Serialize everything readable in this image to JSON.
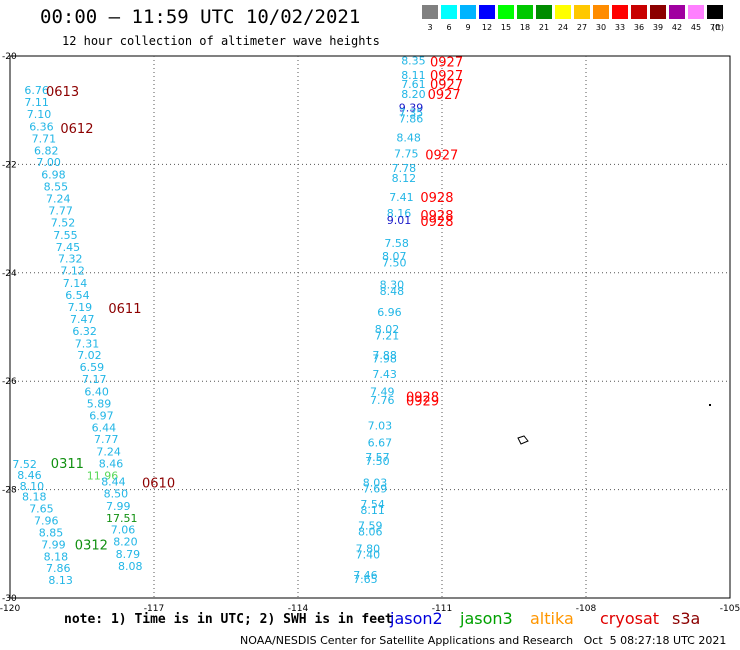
{
  "header": {
    "title": "00:00 – 11:59 UTC 10/02/2021",
    "subtitle": "12 hour collection of altimeter wave heights"
  },
  "color_scale": {
    "unit": "(ft)",
    "bins": [
      {
        "label": "3",
        "color": "#808080"
      },
      {
        "label": "6",
        "color": "#00ffff"
      },
      {
        "label": "9",
        "color": "#00b4ff"
      },
      {
        "label": "12",
        "color": "#0000ff"
      },
      {
        "label": "15",
        "color": "#00ff00"
      },
      {
        "label": "18",
        "color": "#00c800"
      },
      {
        "label": "21",
        "color": "#008c00"
      },
      {
        "label": "24",
        "color": "#ffff00"
      },
      {
        "label": "27",
        "color": "#ffc800"
      },
      {
        "label": "30",
        "color": "#ff8c00"
      },
      {
        "label": "33",
        "color": "#ff0000"
      },
      {
        "label": "36",
        "color": "#c80000"
      },
      {
        "label": "39",
        "color": "#8c0000"
      },
      {
        "label": "42",
        "color": "#a000a0"
      },
      {
        "label": "45",
        "color": "#ff80ff"
      },
      {
        "label": "70",
        "color": "#000000"
      }
    ]
  },
  "axes": {
    "lon_ticks": [
      -120,
      -117,
      -114,
      -111,
      -108,
      -105
    ],
    "lat_ticks": [
      -20,
      -22,
      -24,
      -26,
      -28,
      -30
    ],
    "lon_labels": [
      "-120",
      "-117",
      "-114",
      "-111",
      "-108",
      "-105"
    ],
    "lat_labels": [
      "-20",
      "-22",
      "-24",
      "-26",
      "-28",
      "-30"
    ]
  },
  "colors": {
    "cyan": "#22b6e6",
    "blue": "#1818c8",
    "green_light": "#58d858",
    "green": "#109010",
    "dark_red": "#8c0000",
    "red": "#ff0000"
  },
  "wave_heights": [
    {
      "v": "6.76",
      "lon": -119.7,
      "lat": -20.63,
      "c": "cyan"
    },
    {
      "v": "7.11",
      "lon": -119.7,
      "lat": -20.85,
      "c": "cyan"
    },
    {
      "v": "7.10",
      "lon": -119.65,
      "lat": -21.07,
      "c": "cyan"
    },
    {
      "v": "6.36",
      "lon": -119.6,
      "lat": -21.3,
      "c": "cyan"
    },
    {
      "v": "7.71",
      "lon": -119.55,
      "lat": -21.52,
      "c": "cyan"
    },
    {
      "v": "6.82",
      "lon": -119.5,
      "lat": -21.74,
      "c": "cyan"
    },
    {
      "v": "7.00",
      "lon": -119.45,
      "lat": -21.96,
      "c": "cyan"
    },
    {
      "v": "6.98",
      "lon": -119.35,
      "lat": -22.19,
      "c": "cyan"
    },
    {
      "v": "8.55",
      "lon": -119.3,
      "lat": -22.41,
      "c": "cyan"
    },
    {
      "v": "7.24",
      "lon": -119.25,
      "lat": -22.63,
      "c": "cyan"
    },
    {
      "v": "7.77",
      "lon": -119.2,
      "lat": -22.85,
      "c": "cyan"
    },
    {
      "v": "7.52",
      "lon": -119.15,
      "lat": -23.07,
      "c": "cyan"
    },
    {
      "v": "7.55",
      "lon": -119.1,
      "lat": -23.3,
      "c": "cyan"
    },
    {
      "v": "7.45",
      "lon": -119.05,
      "lat": -23.52,
      "c": "cyan"
    },
    {
      "v": "7.32",
      "lon": -119.0,
      "lat": -23.74,
      "c": "cyan"
    },
    {
      "v": "7.12",
      "lon": -118.95,
      "lat": -23.96,
      "c": "cyan"
    },
    {
      "v": "7.14",
      "lon": -118.9,
      "lat": -24.19,
      "c": "cyan"
    },
    {
      "v": "6.54",
      "lon": -118.85,
      "lat": -24.41,
      "c": "cyan"
    },
    {
      "v": "7.19",
      "lon": -118.8,
      "lat": -24.63,
      "c": "cyan"
    },
    {
      "v": "7.47",
      "lon": -118.75,
      "lat": -24.85,
      "c": "cyan"
    },
    {
      "v": "6.32",
      "lon": -118.7,
      "lat": -25.07,
      "c": "cyan"
    },
    {
      "v": "7.31",
      "lon": -118.65,
      "lat": -25.3,
      "c": "cyan"
    },
    {
      "v": "7.02",
      "lon": -118.6,
      "lat": -25.52,
      "c": "cyan"
    },
    {
      "v": "6.59",
      "lon": -118.55,
      "lat": -25.74,
      "c": "cyan"
    },
    {
      "v": "7.17",
      "lon": -118.5,
      "lat": -25.96,
      "c": "cyan"
    },
    {
      "v": "6.40",
      "lon": -118.45,
      "lat": -26.19,
      "c": "cyan"
    },
    {
      "v": "5.89",
      "lon": -118.4,
      "lat": -26.41,
      "c": "cyan"
    },
    {
      "v": "6.97",
      "lon": -118.35,
      "lat": -26.63,
      "c": "cyan"
    },
    {
      "v": "6.44",
      "lon": -118.3,
      "lat": -26.85,
      "c": "cyan"
    },
    {
      "v": "7.77",
      "lon": -118.25,
      "lat": -27.07,
      "c": "cyan"
    },
    {
      "v": "7.24",
      "lon": -118.2,
      "lat": -27.3,
      "c": "cyan"
    },
    {
      "v": "8.46",
      "lon": -118.15,
      "lat": -27.52,
      "c": "cyan"
    },
    {
      "v": "11.96",
      "lon": -118.4,
      "lat": -27.74,
      "c": "green_light"
    },
    {
      "v": "8.44",
      "lon": -118.1,
      "lat": -27.85,
      "c": "cyan"
    },
    {
      "v": "8.50",
      "lon": -118.05,
      "lat": -28.07,
      "c": "cyan"
    },
    {
      "v": "7.99",
      "lon": -118.0,
      "lat": -28.3,
      "c": "cyan"
    },
    {
      "v": "17.51",
      "lon": -118.0,
      "lat": -28.52,
      "c": "green"
    },
    {
      "v": "7.06",
      "lon": -117.9,
      "lat": -28.74,
      "c": "cyan"
    },
    {
      "v": "8.20",
      "lon": -117.85,
      "lat": -28.96,
      "c": "cyan"
    },
    {
      "v": "8.79",
      "lon": -117.8,
      "lat": -29.19,
      "c": "cyan"
    },
    {
      "v": "8.08",
      "lon": -117.75,
      "lat": -29.41,
      "c": "cyan"
    },
    {
      "v": "7.52",
      "lon": -119.95,
      "lat": -27.53,
      "c": "cyan"
    },
    {
      "v": "8.46",
      "lon": -119.85,
      "lat": -27.73,
      "c": "cyan"
    },
    {
      "v": "8.10",
      "lon": -119.8,
      "lat": -27.93,
      "c": "cyan"
    },
    {
      "v": "8.18",
      "lon": -119.75,
      "lat": -28.13,
      "c": "cyan"
    },
    {
      "v": "7.65",
      "lon": -119.6,
      "lat": -28.35,
      "c": "cyan"
    },
    {
      "v": "7.96",
      "lon": -119.5,
      "lat": -28.57,
      "c": "cyan"
    },
    {
      "v": "8.85",
      "lon": -119.4,
      "lat": -28.79,
      "c": "cyan"
    },
    {
      "v": "7.99",
      "lon": -119.35,
      "lat": -29.01,
      "c": "cyan"
    },
    {
      "v": "8.18",
      "lon": -119.3,
      "lat": -29.23,
      "c": "cyan"
    },
    {
      "v": "7.86",
      "lon": -119.25,
      "lat": -29.45,
      "c": "cyan"
    },
    {
      "v": "8.13",
      "lon": -119.2,
      "lat": -29.67,
      "c": "cyan"
    },
    {
      "v": "8.35",
      "lon": -111.85,
      "lat": -20.08,
      "c": "cyan"
    },
    {
      "v": "8.11",
      "lon": -111.85,
      "lat": -20.35,
      "c": "cyan"
    },
    {
      "v": "7.61",
      "lon": -111.85,
      "lat": -20.52,
      "c": "cyan"
    },
    {
      "v": "8.20",
      "lon": -111.85,
      "lat": -20.7,
      "c": "cyan"
    },
    {
      "v": "9.39",
      "lon": -111.9,
      "lat": -20.95,
      "c": "blue"
    },
    {
      "v": "7.35",
      "lon": -111.9,
      "lat": -21.04,
      "c": "cyan"
    },
    {
      "v": "7.86",
      "lon": -111.9,
      "lat": -21.15,
      "c": "cyan"
    },
    {
      "v": "8.48",
      "lon": -111.95,
      "lat": -21.5,
      "c": "cyan"
    },
    {
      "v": "7.75",
      "lon": -112.0,
      "lat": -21.8,
      "c": "cyan"
    },
    {
      "v": "7.78",
      "lon": -112.05,
      "lat": -22.07,
      "c": "cyan"
    },
    {
      "v": "8.12",
      "lon": -112.05,
      "lat": -22.25,
      "c": "cyan"
    },
    {
      "v": "7.41",
      "lon": -112.1,
      "lat": -22.6,
      "c": "cyan"
    },
    {
      "v": "8.16",
      "lon": -112.15,
      "lat": -22.9,
      "c": "cyan"
    },
    {
      "v": "9.01",
      "lon": -112.15,
      "lat": -23.03,
      "c": "blue"
    },
    {
      "v": "7.58",
      "lon": -112.2,
      "lat": -23.45,
      "c": "cyan"
    },
    {
      "v": "8.07",
      "lon": -112.25,
      "lat": -23.69,
      "c": "cyan"
    },
    {
      "v": "7.50",
      "lon": -112.25,
      "lat": -23.81,
      "c": "cyan"
    },
    {
      "v": "8.30",
      "lon": -112.3,
      "lat": -24.22,
      "c": "cyan"
    },
    {
      "v": "8.48",
      "lon": -112.3,
      "lat": -24.34,
      "c": "cyan"
    },
    {
      "v": "6.96",
      "lon": -112.35,
      "lat": -24.72,
      "c": "cyan"
    },
    {
      "v": "8.02",
      "lon": -112.4,
      "lat": -25.04,
      "c": "cyan"
    },
    {
      "v": "7.21",
      "lon": -112.4,
      "lat": -25.16,
      "c": "cyan"
    },
    {
      "v": "7.88",
      "lon": -112.45,
      "lat": -25.52,
      "c": "cyan"
    },
    {
      "v": "7.98",
      "lon": -112.45,
      "lat": -25.58,
      "c": "cyan"
    },
    {
      "v": "7.43",
      "lon": -112.45,
      "lat": -25.87,
      "c": "cyan"
    },
    {
      "v": "7.49",
      "lon": -112.5,
      "lat": -26.19,
      "c": "cyan"
    },
    {
      "v": "7.76",
      "lon": -112.5,
      "lat": -26.35,
      "c": "cyan"
    },
    {
      "v": "7.03",
      "lon": -112.55,
      "lat": -26.82,
      "c": "cyan"
    },
    {
      "v": "6.67",
      "lon": -112.55,
      "lat": -27.13,
      "c": "cyan"
    },
    {
      "v": "7.57",
      "lon": -112.6,
      "lat": -27.4,
      "c": "cyan"
    },
    {
      "v": "7.50",
      "lon": -112.6,
      "lat": -27.47,
      "c": "cyan"
    },
    {
      "v": "8.03",
      "lon": -112.65,
      "lat": -27.87,
      "c": "cyan"
    },
    {
      "v": "7.69",
      "lon": -112.65,
      "lat": -27.98,
      "c": "cyan"
    },
    {
      "v": "7.54",
      "lon": -112.7,
      "lat": -28.27,
      "c": "cyan"
    },
    {
      "v": "8.11",
      "lon": -112.7,
      "lat": -28.38,
      "c": "cyan"
    },
    {
      "v": "7.59",
      "lon": -112.75,
      "lat": -28.66,
      "c": "cyan"
    },
    {
      "v": "8.06",
      "lon": -112.75,
      "lat": -28.77,
      "c": "cyan"
    },
    {
      "v": "7.80",
      "lon": -112.8,
      "lat": -29.09,
      "c": "cyan"
    },
    {
      "v": "7.40",
      "lon": -112.8,
      "lat": -29.2,
      "c": "cyan"
    },
    {
      "v": "7.46",
      "lon": -112.85,
      "lat": -29.58,
      "c": "cyan"
    },
    {
      "v": "7.65",
      "lon": -112.85,
      "lat": -29.65,
      "c": "cyan"
    }
  ],
  "time_labels": [
    {
      "t": "0613",
      "lon": -119.25,
      "lat": -20.65,
      "c": "dark_red"
    },
    {
      "t": "0612",
      "lon": -118.95,
      "lat": -21.33,
      "c": "dark_red"
    },
    {
      "t": "0611",
      "lon": -117.95,
      "lat": -24.65,
      "c": "dark_red"
    },
    {
      "t": "0610",
      "lon": -117.25,
      "lat": -27.87,
      "c": "dark_red"
    },
    {
      "t": "0311",
      "lon": -119.15,
      "lat": -27.51,
      "c": "green"
    },
    {
      "t": "0312",
      "lon": -118.65,
      "lat": -29.01,
      "c": "green"
    },
    {
      "t": "0927",
      "lon": -111.25,
      "lat": -20.1,
      "c": "red"
    },
    {
      "t": "0927",
      "lon": -111.25,
      "lat": -20.35,
      "c": "red"
    },
    {
      "t": "0927",
      "lon": -111.25,
      "lat": -20.52,
      "c": "red"
    },
    {
      "t": "0927",
      "lon": -111.3,
      "lat": -20.7,
      "c": "red"
    },
    {
      "t": "0927",
      "lon": -111.35,
      "lat": -21.82,
      "c": "red"
    },
    {
      "t": "0928",
      "lon": -111.45,
      "lat": -22.6,
      "c": "red"
    },
    {
      "t": "0928",
      "lon": -111.45,
      "lat": -22.93,
      "c": "red"
    },
    {
      "t": "0928",
      "lon": -111.45,
      "lat": -23.04,
      "c": "red"
    },
    {
      "t": "0928",
      "lon": -111.75,
      "lat": -26.28,
      "c": "red"
    },
    {
      "t": "0929",
      "lon": -111.75,
      "lat": -26.36,
      "c": "red"
    }
  ],
  "note": "note: 1) Time is in UTC; 2) SWH is in feet",
  "satellites": [
    {
      "name": "jason2",
      "color": "#0000dc",
      "left": 390
    },
    {
      "name": "jason3",
      "color": "#00a000",
      "left": 460
    },
    {
      "name": "altika",
      "color": "#ff9600",
      "left": 530
    },
    {
      "name": "cryosat",
      "color": "#e00000",
      "left": 600
    },
    {
      "name": "s3a",
      "color": "#8c0000",
      "left": 672
    }
  ],
  "footer": "NOAA/NESDIS Center for Satellite Applications and Research   Oct  5 08:27:18 UTC 2021"
}
